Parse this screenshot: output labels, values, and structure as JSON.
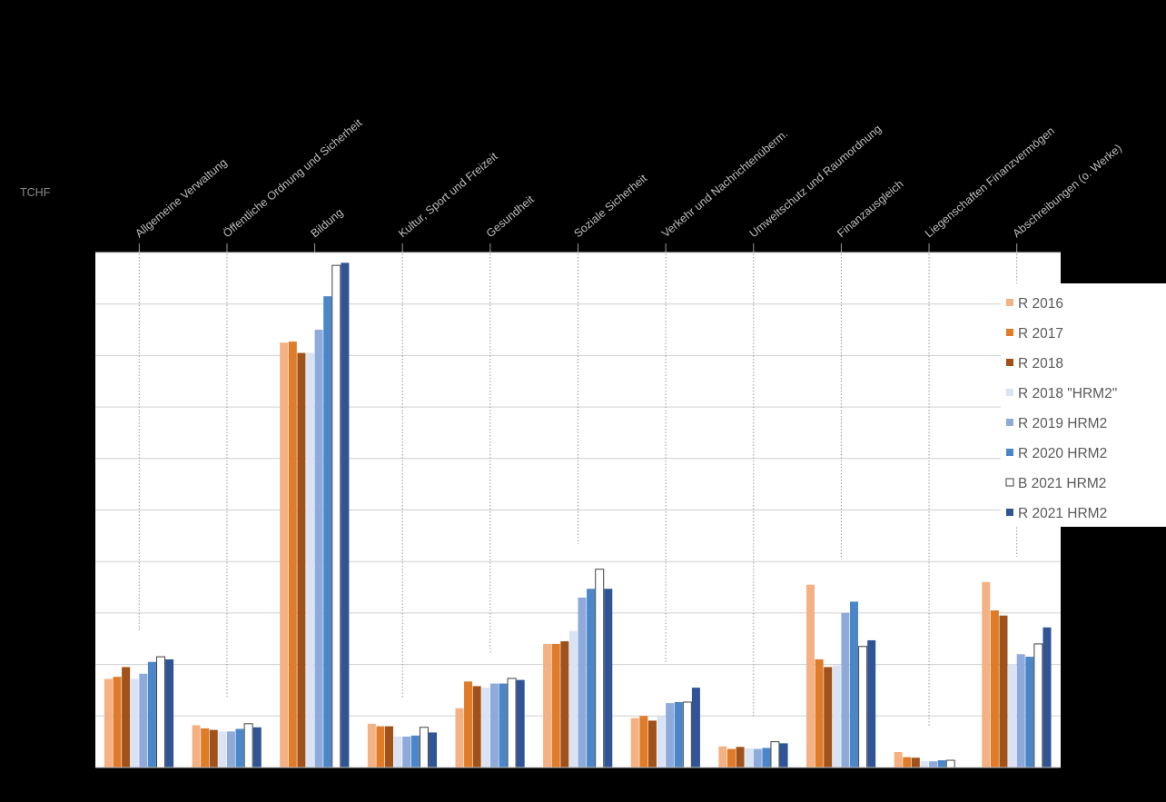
{
  "chart_data": {
    "type": "bar",
    "ylabel": "TCHF",
    "ylim": [
      0,
      10
    ],
    "grid": true,
    "legend_position": "right",
    "categories": [
      "Allgemeine Verwaltung",
      "Öffentliche Ordnung und Sicherheit",
      "Bildung",
      "Kultur, Sport und Freizeit",
      "Gesundheit",
      "Soziale Sicherheit",
      "Verkehr und Nachrichtenüberm.",
      "Umweltschutz und Raumordnung",
      "Finanzausgleich",
      "Liegenschaften Finanzvermögen",
      "Abschreibungen (o. Werke)"
    ],
    "series": [
      {
        "name": "R 2016",
        "color": "#f4b183",
        "values": [
          1.72,
          0.82,
          8.25,
          0.85,
          1.15,
          2.4,
          0.96,
          0.41,
          3.55,
          0.3,
          3.6
        ]
      },
      {
        "name": "R 2017",
        "color": "#e07b28",
        "values": [
          1.76,
          0.76,
          8.27,
          0.8,
          1.67,
          2.4,
          1.0,
          0.36,
          2.1,
          0.2,
          3.05
        ]
      },
      {
        "name": "R 2018",
        "color": "#a0521a",
        "values": [
          1.95,
          0.73,
          8.05,
          0.8,
          1.58,
          2.45,
          0.91,
          0.4,
          1.95,
          0.19,
          2.95
        ]
      },
      {
        "name": "R 2018 \"HRM2\"",
        "color": "#dae3f3",
        "values": [
          1.72,
          0.7,
          8.05,
          0.6,
          1.55,
          2.65,
          1.0,
          0.37,
          1.98,
          0.12,
          2.0
        ]
      },
      {
        "name": "R 2019 HRM2",
        "color": "#8eaadb",
        "values": [
          1.82,
          0.7,
          8.5,
          0.6,
          1.63,
          3.3,
          1.25,
          0.36,
          3.0,
          0.12,
          2.2
        ]
      },
      {
        "name": "R 2020 HRM2",
        "color": "#4a86c8",
        "values": [
          2.05,
          0.75,
          9.15,
          0.62,
          1.63,
          3.47,
          1.27,
          0.38,
          3.22,
          0.14,
          2.15
        ]
      },
      {
        "name": "B 2021 HRM2",
        "color": "#ffffff",
        "outline": "#404040",
        "values": [
          2.15,
          0.85,
          9.75,
          0.78,
          1.73,
          3.85,
          1.27,
          0.5,
          2.35,
          0.14,
          2.4
        ]
      },
      {
        "name": "R 2021 HRM2",
        "color": "#2f5597",
        "values": [
          2.1,
          0.78,
          9.8,
          0.68,
          1.7,
          3.47,
          1.55,
          0.47,
          2.47,
          0.0,
          2.72
        ]
      }
    ]
  }
}
